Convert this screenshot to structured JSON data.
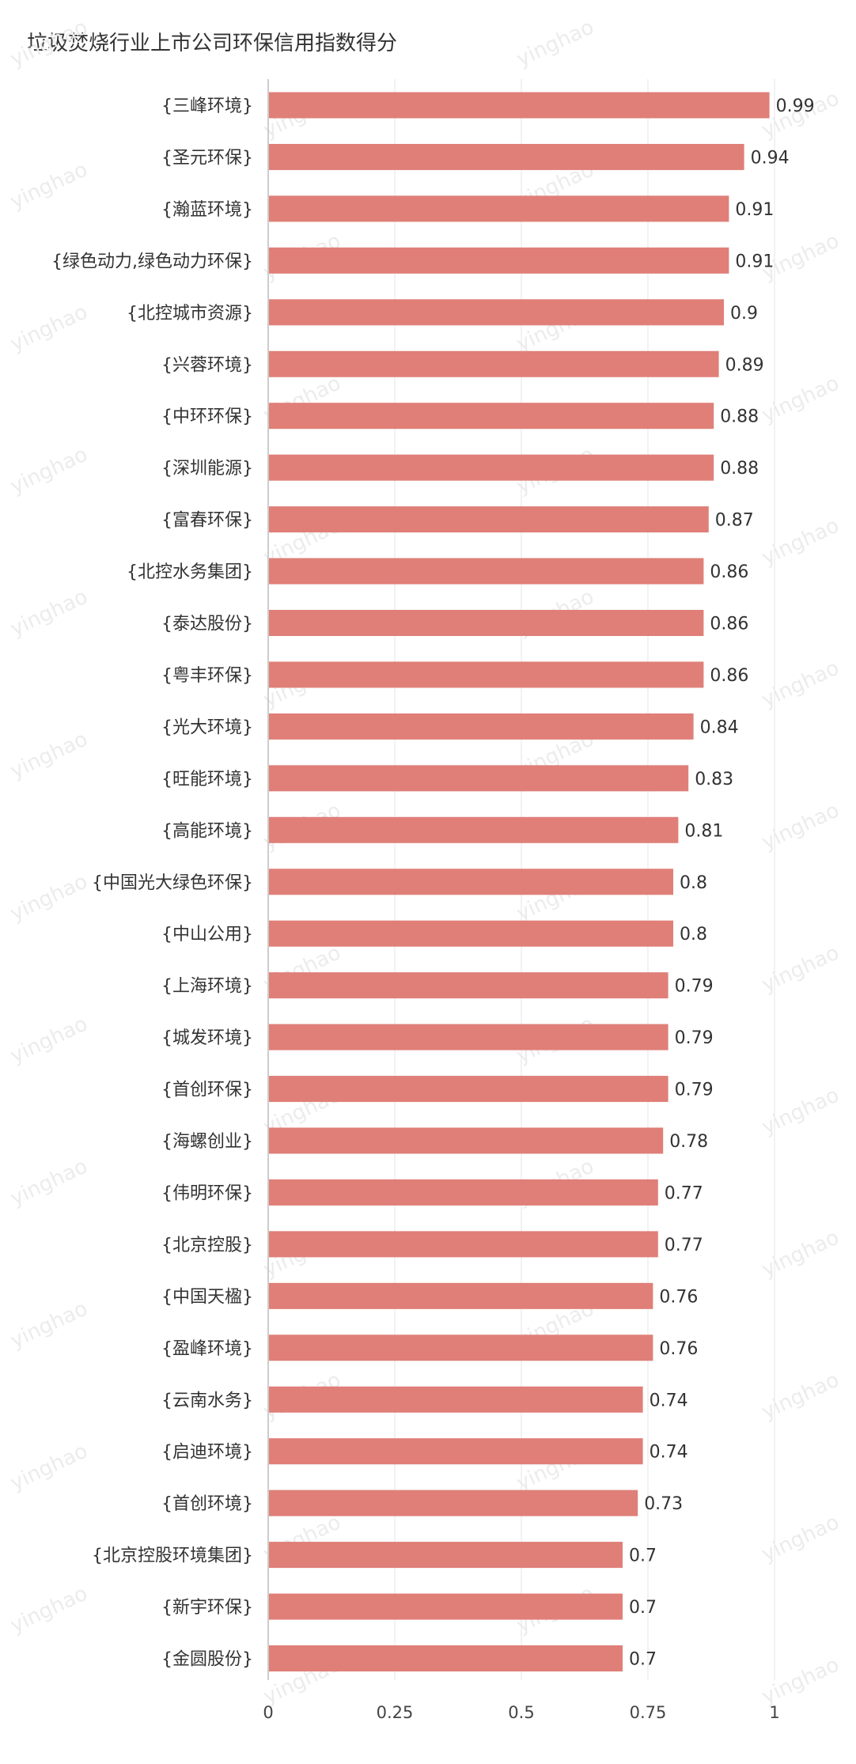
{
  "chart_data": {
    "type": "bar",
    "orientation": "horizontal",
    "title": "垃圾焚烧行业上市公司环保信用指数得分",
    "xlabel": "",
    "ylabel": "",
    "xlim": [
      0,
      1
    ],
    "xticks": [
      0,
      0.25,
      0.5,
      0.75,
      1
    ],
    "xtick_labels": [
      "0",
      "0.25",
      "0.5",
      "0.75",
      "1"
    ],
    "grid": true,
    "bar_color": "#df7f78",
    "categories": [
      "{三峰环境}",
      "{圣元环保}",
      "{瀚蓝环境}",
      "{绿色动力,绿色动力环保}",
      "{北控城市资源}",
      "{兴蓉环境}",
      "{中环环保}",
      "{深圳能源}",
      "{富春环保}",
      "{北控水务集团}",
      "{泰达股份}",
      "{粤丰环保}",
      "{光大环境}",
      "{旺能环境}",
      "{高能环境}",
      "{中国光大绿色环保}",
      "{中山公用}",
      "{上海环境}",
      "{城发环境}",
      "{首创环保}",
      "{海螺创业}",
      "{伟明环保}",
      "{北京控股}",
      "{中国天楹}",
      "{盈峰环境}",
      "{云南水务}",
      "{启迪环境}",
      "{首创环境}",
      "{北京控股环境集团}",
      "{新宇环保}",
      "{金圆股份}"
    ],
    "values": [
      0.99,
      0.94,
      0.91,
      0.91,
      0.9,
      0.89,
      0.88,
      0.88,
      0.87,
      0.86,
      0.86,
      0.86,
      0.84,
      0.83,
      0.81,
      0.8,
      0.8,
      0.79,
      0.79,
      0.79,
      0.78,
      0.77,
      0.77,
      0.76,
      0.76,
      0.74,
      0.74,
      0.73,
      0.7,
      0.7,
      0.7
    ],
    "value_labels": [
      "0.99",
      "0.94",
      "0.91",
      "0.91",
      "0.9",
      "0.89",
      "0.88",
      "0.88",
      "0.87",
      "0.86",
      "0.86",
      "0.86",
      "0.84",
      "0.83",
      "0.81",
      "0.8",
      "0.8",
      "0.79",
      "0.79",
      "0.79",
      "0.78",
      "0.77",
      "0.77",
      "0.76",
      "0.76",
      "0.74",
      "0.74",
      "0.73",
      "0.7",
      "0.7",
      "0.7"
    ]
  },
  "watermark": {
    "text": "yinghao",
    "color": "#ececec"
  }
}
